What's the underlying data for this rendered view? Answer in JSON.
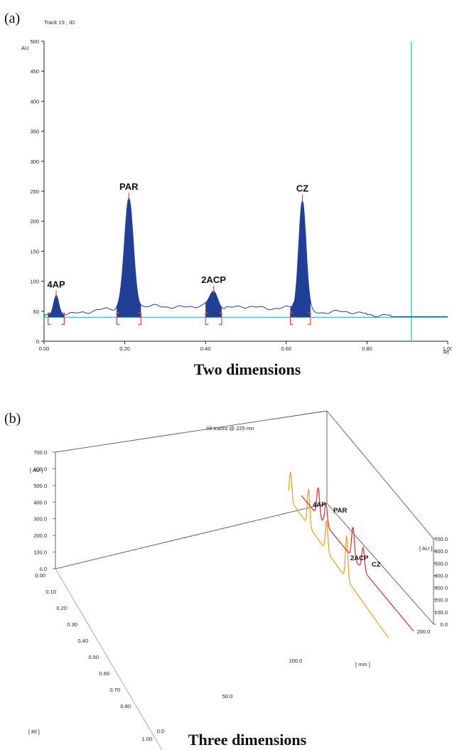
{
  "panel_a": {
    "tag": "(a)",
    "header": "Track 19 , ID:",
    "caption": "Two dimensions"
  },
  "panel_b": {
    "tag": "(b)",
    "header": "All tracks @ 225 nm",
    "caption": "Three dimensions"
  },
  "colors": {
    "peak_fill": "#1f3f98",
    "baseline": "#2a9ad1",
    "marker": "#e8442d",
    "vline": "#35b6c6",
    "trace_orange": "#f2a22a",
    "trace_red": "#e0383a"
  },
  "chart_data": [
    {
      "type": "line",
      "panel": "a",
      "ylabel": "AU",
      "xlabel": "Rf",
      "xlim": [
        0.0,
        1.0
      ],
      "ylim": [
        0,
        500
      ],
      "x_ticks": [
        "0.00",
        "0.20",
        "0.40",
        "0.60",
        "0.80",
        "1.00"
      ],
      "y_ticks": [
        "0",
        "50",
        "100",
        "150",
        "200",
        "250",
        "300",
        "350",
        "400",
        "450",
        "500"
      ],
      "peaks": [
        {
          "label": "4AP",
          "rf": 0.03,
          "au": 75,
          "start": 0.01,
          "end": 0.05
        },
        {
          "label": "PAR",
          "rf": 0.21,
          "au": 238,
          "start": 0.18,
          "end": 0.24
        },
        {
          "label": "2ACP",
          "rf": 0.42,
          "au": 83,
          "start": 0.4,
          "end": 0.44
        },
        {
          "label": "CZ",
          "rf": 0.64,
          "au": 235,
          "start": 0.61,
          "end": 0.66
        }
      ],
      "baseline_au": 40,
      "vertical_line_rf": 0.91
    },
    {
      "type": "line",
      "panel": "b",
      "z_label": "[ AU ]",
      "y_label": "[ Rf ]",
      "x_label": "[ mm ]",
      "au_ticks": [
        "0.0",
        "100.0",
        "200.0",
        "300.0",
        "400.0",
        "500.0",
        "600.0",
        "700.0"
      ],
      "rf_ticks": [
        "0.00",
        "0.10",
        "0.20",
        "0.30",
        "0.40",
        "0.50",
        "0.60",
        "0.70",
        "0.80",
        "1.00"
      ],
      "mm_ticks": [
        "0.0",
        "50.0",
        "100.0",
        "200.0"
      ],
      "series": [
        {
          "peaks": [
            "4AP",
            "PAR",
            "2ACP",
            "CZ"
          ]
        }
      ]
    }
  ]
}
